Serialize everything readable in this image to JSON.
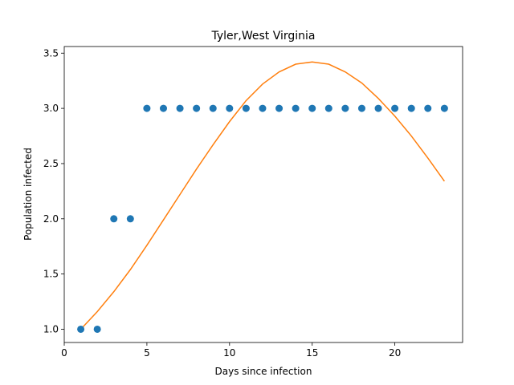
{
  "chart_data": {
    "type": "scatter",
    "title": "Tyler,West Virginia",
    "xlabel": "Days since infection",
    "ylabel": "Population infected",
    "xlim": [
      0,
      24.1
    ],
    "ylim": [
      0.88,
      3.56
    ],
    "xticks": [
      0,
      5,
      10,
      15,
      20
    ],
    "yticks": [
      1.0,
      1.5,
      2.0,
      2.5,
      3.0,
      3.5
    ],
    "grid": false,
    "series": [
      {
        "kind": "scatter",
        "color": "#1f77b4",
        "x": [
          1,
          2,
          3,
          4,
          5,
          6,
          7,
          8,
          9,
          10,
          11,
          12,
          13,
          14,
          15,
          16,
          17,
          18,
          19,
          20,
          21,
          22,
          23
        ],
        "y": [
          1,
          1,
          2,
          2,
          3,
          3,
          3,
          3,
          3,
          3,
          3,
          3,
          3,
          3,
          3,
          3,
          3,
          3,
          3,
          3,
          3,
          3,
          3
        ]
      },
      {
        "kind": "line",
        "color": "#ff7f0e",
        "x": [
          1,
          2,
          3,
          4,
          5,
          6,
          7,
          8,
          9,
          10,
          11,
          12,
          13,
          14,
          15,
          16,
          17,
          18,
          19,
          20,
          21,
          22,
          23
        ],
        "y": [
          1.0,
          1.16,
          1.34,
          1.54,
          1.76,
          1.99,
          2.22,
          2.45,
          2.67,
          2.88,
          3.07,
          3.22,
          3.33,
          3.4,
          3.42,
          3.4,
          3.33,
          3.23,
          3.09,
          2.93,
          2.75,
          2.55,
          2.34
        ]
      }
    ]
  }
}
